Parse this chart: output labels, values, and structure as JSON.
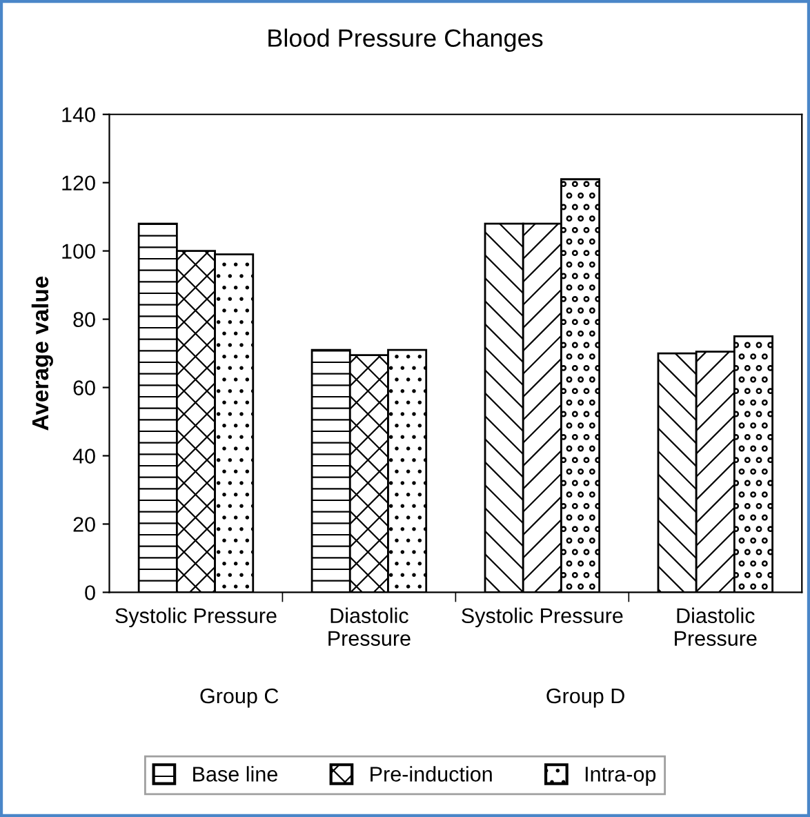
{
  "chart_data": {
    "type": "bar",
    "title": "Blood Pressure Changes",
    "ylabel": "Average value",
    "categories": [
      "Systolic Pressure",
      "Diastolic\nPressure",
      "Systolic Pressure",
      "Diastolic\nPressure"
    ],
    "series": [
      {
        "name": "Base line",
        "color": "#000000",
        "values": [
          108,
          71,
          108,
          70
        ]
      },
      {
        "name": "Pre-induction",
        "color": "#000000",
        "values": [
          100,
          69.5,
          108,
          70.5
        ]
      },
      {
        "name": "Intra-op",
        "color": "#000000",
        "values": [
          99,
          71,
          121,
          75
        ]
      }
    ],
    "annotations": [
      "Group C",
      "Group D"
    ],
    "ylim": [
      0,
      140
    ],
    "yticks": [
      0,
      20,
      40,
      60,
      80,
      100,
      120,
      140
    ],
    "grid": false,
    "legend": "bottom"
  }
}
